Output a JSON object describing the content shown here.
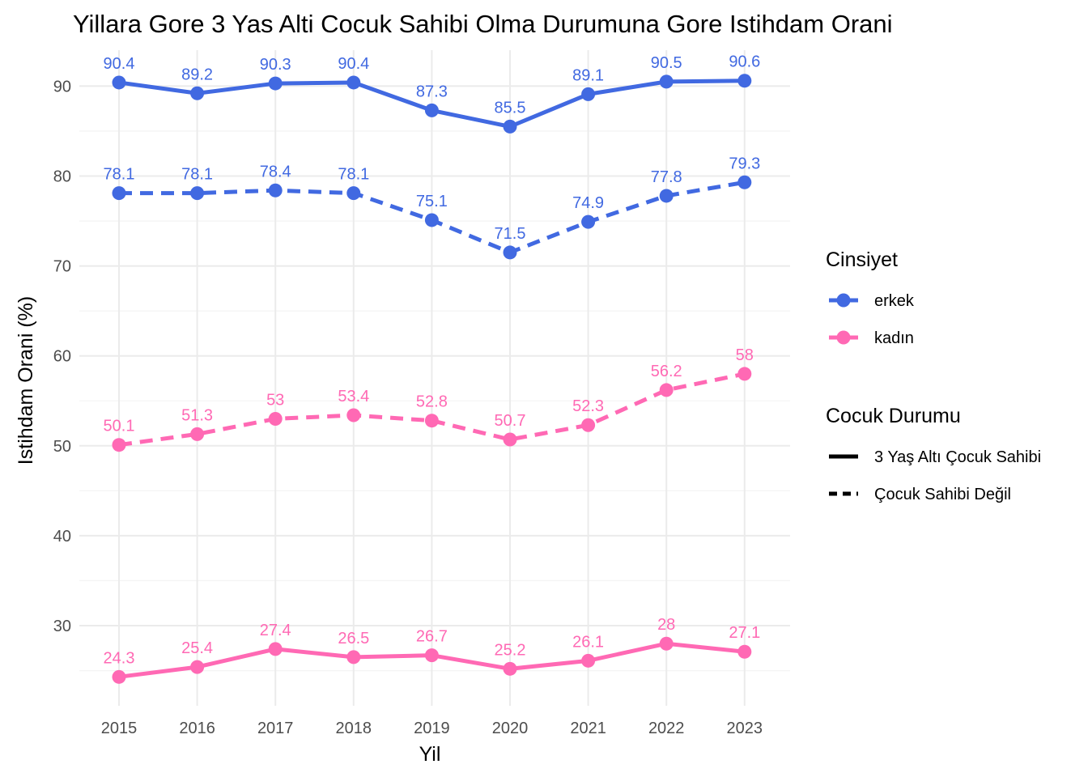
{
  "chart_data": {
    "type": "line",
    "title": "Yillara Gore 3 Yas Alti Cocuk Sahibi Olma Durumuna Gore Istihdam Orani",
    "xlabel": "Yil",
    "ylabel": "Istihdam Orani (%)",
    "x": [
      2015,
      2016,
      2017,
      2018,
      2019,
      2020,
      2021,
      2022,
      2023
    ],
    "y_ticks": [
      30,
      40,
      50,
      60,
      70,
      80,
      90
    ],
    "ylim": [
      21,
      94
    ],
    "grid": true,
    "legend_position": "right",
    "legends": [
      {
        "title": "Cinsiyet",
        "entries": [
          {
            "label": "erkek",
            "color": "#4169E1"
          },
          {
            "label": "kadın",
            "color": "#FF69B4"
          }
        ]
      },
      {
        "title": "Cocuk Durumu",
        "entries": [
          {
            "label": "3 Yaş Altı Çocuk Sahibi",
            "linetype": "solid"
          },
          {
            "label": "Çocuk Sahibi Değil",
            "linetype": "dashed"
          }
        ]
      }
    ],
    "series": [
      {
        "gender": "erkek",
        "status": "3 Yaş Altı Çocuk Sahibi",
        "color": "#4169E1",
        "linetype": "solid",
        "values": [
          90.4,
          89.2,
          90.3,
          90.4,
          87.3,
          85.5,
          89.1,
          90.5,
          90.6
        ],
        "labels": [
          "90.4",
          "89.2",
          "90.3",
          "90.4",
          "87.3",
          "85.5",
          "89.1",
          "90.5",
          "90.6"
        ]
      },
      {
        "gender": "erkek",
        "status": "Çocuk Sahibi Değil",
        "color": "#4169E1",
        "linetype": "dashed",
        "values": [
          78.1,
          78.1,
          78.4,
          78.1,
          75.1,
          71.5,
          74.9,
          77.8,
          79.3
        ],
        "labels": [
          "78.1",
          "78.1",
          "78.4",
          "78.1",
          "75.1",
          "71.5",
          "74.9",
          "77.8",
          "79.3"
        ]
      },
      {
        "gender": "kadın",
        "status": "Çocuk Sahibi Değil",
        "color": "#FF69B4",
        "linetype": "dashed",
        "values": [
          50.1,
          51.3,
          53.0,
          53.4,
          52.8,
          50.7,
          52.3,
          56.2,
          58.0
        ],
        "labels": [
          "50.1",
          "51.3",
          "53",
          "53.4",
          "52.8",
          "50.7",
          "52.3",
          "56.2",
          "58"
        ]
      },
      {
        "gender": "kadın",
        "status": "3 Yaş Altı Çocuk Sahibi",
        "color": "#FF69B4",
        "linetype": "solid",
        "values": [
          24.3,
          25.4,
          27.4,
          26.5,
          26.7,
          25.2,
          26.1,
          28.0,
          27.1
        ],
        "labels": [
          "24.3",
          "25.4",
          "27.4",
          "26.5",
          "26.7",
          "25.2",
          "26.1",
          "28",
          "27.1"
        ]
      }
    ]
  }
}
